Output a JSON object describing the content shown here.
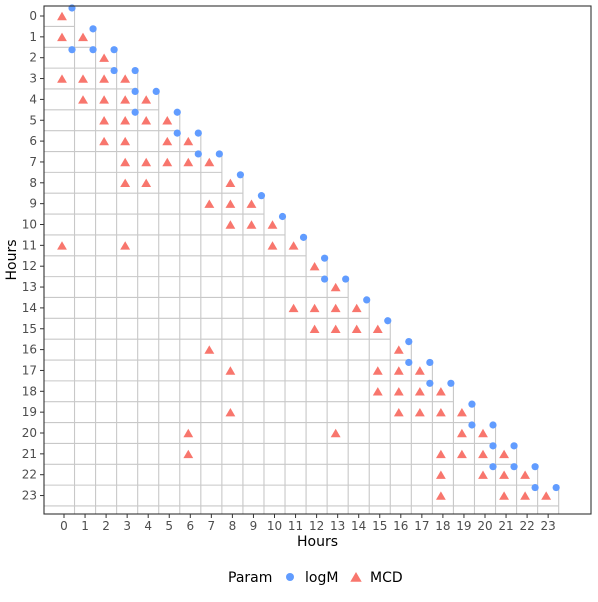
{
  "chart_data": {
    "type": "scatter",
    "xlabel": "Hours",
    "ylabel": "Hours",
    "x_ticks": [
      "0",
      "1",
      "2",
      "3",
      "4",
      "5",
      "6",
      "7",
      "8",
      "9",
      "10",
      "11",
      "12",
      "13",
      "14",
      "15",
      "16",
      "17",
      "18",
      "19",
      "20",
      "21",
      "22",
      "23"
    ],
    "y_ticks": [
      "0",
      "1",
      "2",
      "3",
      "4",
      "5",
      "6",
      "7",
      "8",
      "9",
      "10",
      "11",
      "12",
      "13",
      "14",
      "15",
      "16",
      "17",
      "18",
      "19",
      "20",
      "21",
      "22",
      "23"
    ],
    "y_reversed": true,
    "grid": "lower-triangle staircase",
    "legend": {
      "title": "Param",
      "position": "bottom",
      "entries": [
        {
          "name": "logM",
          "shape": "circle",
          "color": "#619CFF"
        },
        {
          "name": "MCD",
          "shape": "triangle",
          "color": "#F8766D"
        }
      ]
    },
    "series": [
      {
        "name": "logM",
        "shape": "circle",
        "color": "#619CFF",
        "points": [
          [
            0,
            0
          ],
          [
            1,
            1
          ],
          [
            0,
            2
          ],
          [
            1,
            2
          ],
          [
            2,
            2
          ],
          [
            2,
            3
          ],
          [
            3,
            3
          ],
          [
            3,
            4
          ],
          [
            4,
            4
          ],
          [
            3,
            5
          ],
          [
            5,
            5
          ],
          [
            5,
            6
          ],
          [
            6,
            6
          ],
          [
            6,
            7
          ],
          [
            7,
            7
          ],
          [
            8,
            8
          ],
          [
            9,
            9
          ],
          [
            10,
            10
          ],
          [
            11,
            11
          ],
          [
            12,
            12
          ],
          [
            12,
            13
          ],
          [
            13,
            13
          ],
          [
            14,
            14
          ],
          [
            15,
            15
          ],
          [
            16,
            16
          ],
          [
            16,
            17
          ],
          [
            17,
            17
          ],
          [
            17,
            18
          ],
          [
            18,
            18
          ],
          [
            19,
            19
          ],
          [
            19,
            20
          ],
          [
            20,
            20
          ],
          [
            20,
            21
          ],
          [
            21,
            21
          ],
          [
            20,
            22
          ],
          [
            21,
            22
          ],
          [
            22,
            22
          ],
          [
            22,
            23
          ],
          [
            23,
            23
          ]
        ]
      },
      {
        "name": "MCD",
        "shape": "triangle",
        "color": "#F8766D",
        "points": [
          [
            0,
            0
          ],
          [
            0,
            1
          ],
          [
            1,
            1
          ],
          [
            2,
            2
          ],
          [
            0,
            3
          ],
          [
            1,
            3
          ],
          [
            2,
            3
          ],
          [
            3,
            3
          ],
          [
            1,
            4
          ],
          [
            2,
            4
          ],
          [
            3,
            4
          ],
          [
            4,
            4
          ],
          [
            2,
            5
          ],
          [
            3,
            5
          ],
          [
            4,
            5
          ],
          [
            5,
            5
          ],
          [
            2,
            6
          ],
          [
            3,
            6
          ],
          [
            5,
            6
          ],
          [
            6,
            6
          ],
          [
            3,
            7
          ],
          [
            4,
            7
          ],
          [
            5,
            7
          ],
          [
            6,
            7
          ],
          [
            7,
            7
          ],
          [
            3,
            8
          ],
          [
            4,
            8
          ],
          [
            8,
            8
          ],
          [
            7,
            9
          ],
          [
            8,
            9
          ],
          [
            9,
            9
          ],
          [
            8,
            10
          ],
          [
            9,
            10
          ],
          [
            10,
            10
          ],
          [
            0,
            11
          ],
          [
            3,
            11
          ],
          [
            10,
            11
          ],
          [
            11,
            11
          ],
          [
            12,
            12
          ],
          [
            13,
            13
          ],
          [
            11,
            14
          ],
          [
            12,
            14
          ],
          [
            13,
            14
          ],
          [
            14,
            14
          ],
          [
            12,
            15
          ],
          [
            13,
            15
          ],
          [
            14,
            15
          ],
          [
            15,
            15
          ],
          [
            7,
            16
          ],
          [
            16,
            16
          ],
          [
            8,
            17
          ],
          [
            15,
            17
          ],
          [
            16,
            17
          ],
          [
            17,
            17
          ],
          [
            15,
            18
          ],
          [
            16,
            18
          ],
          [
            17,
            18
          ],
          [
            18,
            18
          ],
          [
            8,
            19
          ],
          [
            16,
            19
          ],
          [
            17,
            19
          ],
          [
            18,
            19
          ],
          [
            19,
            19
          ],
          [
            6,
            20
          ],
          [
            13,
            20
          ],
          [
            19,
            20
          ],
          [
            20,
            20
          ],
          [
            6,
            21
          ],
          [
            18,
            21
          ],
          [
            19,
            21
          ],
          [
            20,
            21
          ],
          [
            21,
            21
          ],
          [
            18,
            22
          ],
          [
            20,
            22
          ],
          [
            21,
            22
          ],
          [
            22,
            22
          ],
          [
            18,
            23
          ],
          [
            21,
            23
          ],
          [
            22,
            23
          ],
          [
            23,
            23
          ]
        ]
      }
    ]
  }
}
